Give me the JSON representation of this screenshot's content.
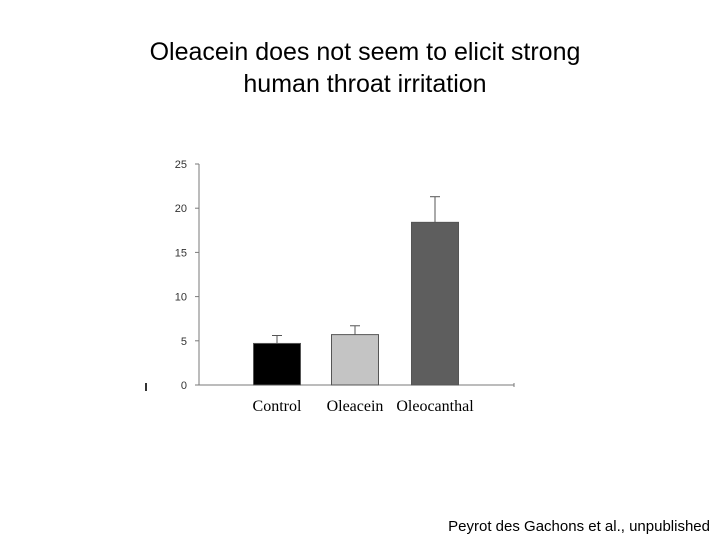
{
  "title": {
    "line1": "Oleacein does not seem to elicit strong",
    "line2": "human throat irritation"
  },
  "citation": "Peyrot des Gachons et al., unpublished",
  "chart_data": {
    "type": "bar",
    "categories": [
      "Control",
      "Oleacein",
      "Oleocanthal"
    ],
    "values": [
      4.7,
      5.7,
      18.4
    ],
    "error_upper": [
      5.6,
      6.7,
      21.3
    ],
    "colors": [
      "#000000",
      "#c4c4c4",
      "#5e5e5e"
    ],
    "yticks": [
      0,
      5,
      10,
      15,
      20,
      25
    ],
    "ylim": [
      0,
      25
    ],
    "grid": false,
    "legend": "none"
  }
}
